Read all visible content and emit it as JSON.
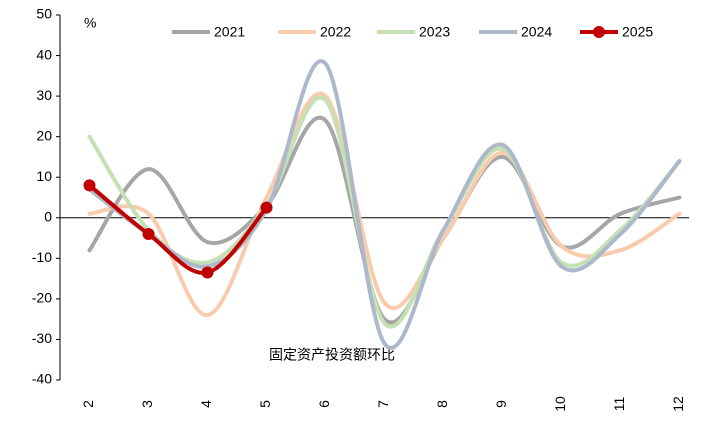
{
  "chart_data": {
    "type": "line",
    "annotations": [
      "%",
      "固定资产投资额环比"
    ],
    "categories": [
      "2",
      "3",
      "4",
      "5",
      "6",
      "7",
      "8",
      "9",
      "10",
      "11",
      "12"
    ],
    "series": [
      {
        "name": "2021",
        "color": "#a6a6a6",
        "values": [
          -8,
          12,
          -6,
          3,
          24,
          -25,
          -5,
          15,
          -7,
          1,
          5
        ]
      },
      {
        "name": "2022",
        "color": "#f8cbad",
        "values": [
          1,
          1,
          -24,
          5,
          30,
          -21,
          -5,
          16,
          -7,
          -8,
          1
        ]
      },
      {
        "name": "2023",
        "color": "#c5e0b4",
        "values": [
          20,
          -3,
          -11,
          3,
          29,
          -26,
          -3,
          17,
          -11,
          -3,
          14
        ]
      },
      {
        "name": "2024",
        "color": "#adb9ca",
        "values": [
          7,
          -4,
          -12,
          2,
          38,
          -31,
          -3,
          18,
          -12,
          -4,
          14
        ]
      },
      {
        "name": "2025",
        "color": "#c00000",
        "markers": true,
        "values": [
          8,
          -4,
          -13.5,
          2.5,
          null,
          null,
          null,
          null,
          null,
          null,
          null
        ]
      }
    ],
    "ylim": [
      -40,
      50
    ],
    "yticks": [
      -40,
      -30,
      -20,
      -10,
      0,
      10,
      20,
      30,
      40,
      50
    ],
    "legend": "top",
    "smooth": true
  }
}
